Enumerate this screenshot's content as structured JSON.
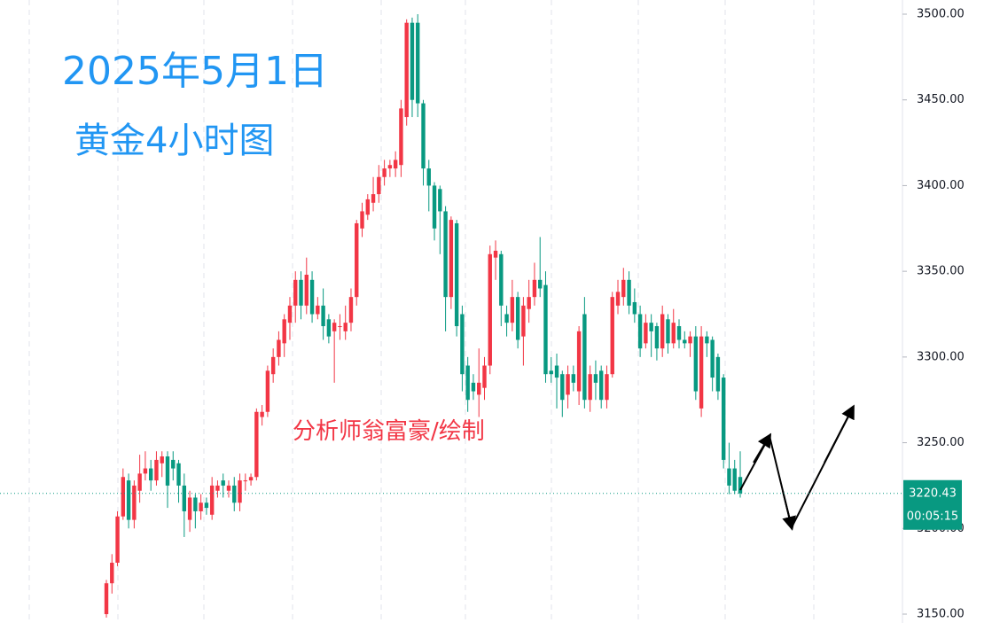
{
  "chart_data": {
    "type": "candlestick",
    "title": "2025年5月1日",
    "subtitle": "黄金4小时图",
    "annotation": "分析师翁富豪/绘制",
    "countdown": "00:05:15",
    "up_color": "#f23645",
    "down_color": "#089981",
    "ylim": [
      3150,
      3500
    ],
    "yticks": [
      {
        "value": 3150,
        "label": "3150.00"
      },
      {
        "value": 3200,
        "label": "3200.00"
      },
      {
        "value": 3250,
        "label": "3250.00"
      },
      {
        "value": 3300,
        "label": "3300.00"
      },
      {
        "value": 3350,
        "label": "3350.00"
      },
      {
        "value": 3400,
        "label": "3400.00"
      },
      {
        "value": 3450,
        "label": "3450.00"
      },
      {
        "value": 3500,
        "label": "3500.00"
      }
    ],
    "ohlc": [
      [
        3150,
        3170,
        3148,
        3168
      ],
      [
        3168,
        3185,
        3162,
        3180
      ],
      [
        3180,
        3210,
        3178,
        3207
      ],
      [
        3207,
        3235,
        3205,
        3230
      ],
      [
        3228,
        3232,
        3200,
        3205
      ],
      [
        3205,
        3228,
        3200,
        3225
      ],
      [
        3222,
        3243,
        3215,
        3232
      ],
      [
        3232,
        3245,
        3228,
        3235
      ],
      [
        3235,
        3240,
        3222,
        3228
      ],
      [
        3228,
        3245,
        3225,
        3240
      ],
      [
        3238,
        3245,
        3230,
        3242
      ],
      [
        3242,
        3245,
        3212,
        3225
      ],
      [
        3240,
        3245,
        3228,
        3235
      ],
      [
        3238,
        3240,
        3215,
        3225
      ],
      [
        3225,
        3232,
        3195,
        3210
      ],
      [
        3205,
        3222,
        3198,
        3218
      ],
      [
        3218,
        3220,
        3200,
        3210
      ],
      [
        3210,
        3220,
        3205,
        3215
      ],
      [
        3215,
        3218,
        3208,
        3212
      ],
      [
        3208,
        3230,
        3205,
        3225
      ],
      [
        3222,
        3228,
        3218,
        3225
      ],
      [
        3228,
        3232,
        3218,
        3225
      ],
      [
        3222,
        3228,
        3218,
        3225
      ],
      [
        3225,
        3230,
        3210,
        3215
      ],
      [
        3215,
        3232,
        3210,
        3228
      ],
      [
        3228,
        3232,
        3222,
        3228
      ],
      [
        3228,
        3232,
        3225,
        3230
      ],
      [
        3230,
        3270,
        3228,
        3268
      ],
      [
        3265,
        3272,
        3260,
        3268
      ],
      [
        3268,
        3295,
        3265,
        3292
      ],
      [
        3290,
        3305,
        3285,
        3300
      ],
      [
        3300,
        3315,
        3295,
        3310
      ],
      [
        3308,
        3325,
        3300,
        3322
      ],
      [
        3320,
        3335,
        3310,
        3330
      ],
      [
        3330,
        3350,
        3320,
        3345
      ],
      [
        3345,
        3350,
        3322,
        3330
      ],
      [
        3330,
        3358,
        3325,
        3348
      ],
      [
        3345,
        3350,
        3320,
        3325
      ],
      [
        3325,
        3335,
        3322,
        3330
      ],
      [
        3330,
        3340,
        3310,
        3318
      ],
      [
        3322,
        3325,
        3308,
        3312
      ],
      [
        3315,
        3322,
        3285,
        3320
      ],
      [
        3318,
        3325,
        3310,
        3318
      ],
      [
        3315,
        3330,
        3310,
        3320
      ],
      [
        3320,
        3340,
        3315,
        3335
      ],
      [
        3335,
        3380,
        3330,
        3378
      ],
      [
        3375,
        3390,
        3370,
        3385
      ],
      [
        3383,
        3395,
        3380,
        3392
      ],
      [
        3390,
        3405,
        3385,
        3395
      ],
      [
        3395,
        3412,
        3390,
        3405
      ],
      [
        3405,
        3415,
        3400,
        3410
      ],
      [
        3410,
        3415,
        3405,
        3412
      ],
      [
        3410,
        3420,
        3405,
        3415
      ],
      [
        3412,
        3450,
        3405,
        3445
      ],
      [
        3440,
        3497,
        3435,
        3495
      ],
      [
        3495,
        3498,
        3440,
        3450
      ],
      [
        3495,
        3500,
        3440,
        3448
      ],
      [
        3448,
        3450,
        3400,
        3410
      ],
      [
        3410,
        3415,
        3385,
        3400
      ],
      [
        3400,
        3402,
        3368,
        3375
      ],
      [
        3398,
        3400,
        3360,
        3385
      ],
      [
        3385,
        3388,
        3315,
        3335
      ],
      [
        3335,
        3382,
        3328,
        3380
      ],
      [
        3378,
        3380,
        3312,
        3318
      ],
      [
        3325,
        3330,
        3280,
        3290
      ],
      [
        3295,
        3300,
        3268,
        3275
      ],
      [
        3285,
        3290,
        3275,
        3280
      ],
      [
        3278,
        3305,
        3265,
        3285
      ],
      [
        3282,
        3300,
        3275,
        3295
      ],
      [
        3295,
        3365,
        3290,
        3360
      ],
      [
        3358,
        3368,
        3345,
        3362
      ],
      [
        3360,
        3362,
        3318,
        3330
      ],
      [
        3325,
        3330,
        3312,
        3320
      ],
      [
        3320,
        3345,
        3315,
        3335
      ],
      [
        3335,
        3338,
        3305,
        3310
      ],
      [
        3312,
        3335,
        3295,
        3330
      ],
      [
        3328,
        3345,
        3320,
        3335
      ],
      [
        3335,
        3355,
        3330,
        3345
      ],
      [
        3345,
        3370,
        3335,
        3340
      ],
      [
        3342,
        3350,
        3285,
        3290
      ],
      [
        3292,
        3300,
        3285,
        3290
      ],
      [
        3295,
        3302,
        3270,
        3288
      ],
      [
        3290,
        3292,
        3265,
        3275
      ],
      [
        3278,
        3295,
        3270,
        3290
      ],
      [
        3290,
        3295,
        3280,
        3285
      ],
      [
        3280,
        3318,
        3272,
        3315
      ],
      [
        3325,
        3335,
        3270,
        3275
      ],
      [
        3275,
        3295,
        3268,
        3290
      ],
      [
        3290,
        3298,
        3275,
        3285
      ],
      [
        3292,
        3295,
        3270,
        3275
      ],
      [
        3275,
        3295,
        3270,
        3290
      ],
      [
        3290,
        3338,
        3288,
        3335
      ],
      [
        3330,
        3345,
        3325,
        3338
      ],
      [
        3335,
        3352,
        3330,
        3345
      ],
      [
        3345,
        3350,
        3325,
        3330
      ],
      [
        3332,
        3340,
        3320,
        3325
      ],
      [
        3325,
        3330,
        3300,
        3305
      ],
      [
        3308,
        3325,
        3305,
        3320
      ],
      [
        3320,
        3325,
        3300,
        3315
      ],
      [
        3318,
        3320,
        3298,
        3305
      ],
      [
        3305,
        3330,
        3300,
        3325
      ],
      [
        3322,
        3325,
        3302,
        3308
      ],
      [
        3308,
        3328,
        3305,
        3320
      ],
      [
        3318,
        3322,
        3305,
        3310
      ],
      [
        3310,
        3315,
        3305,
        3308
      ],
      [
        3308,
        3315,
        3300,
        3312
      ],
      [
        3312,
        3318,
        3275,
        3280
      ],
      [
        3270,
        3318,
        3265,
        3312
      ],
      [
        3312,
        3315,
        3300,
        3308
      ],
      [
        3310,
        3312,
        3280,
        3288
      ],
      [
        3300,
        3302,
        3275,
        3280
      ],
      [
        3288,
        3290,
        3235,
        3240
      ],
      [
        3235,
        3250,
        3220,
        3225
      ],
      [
        3235,
        3240,
        3220,
        3222
      ],
      [
        3230,
        3245,
        3218,
        3220.43
      ]
    ]
  }
}
